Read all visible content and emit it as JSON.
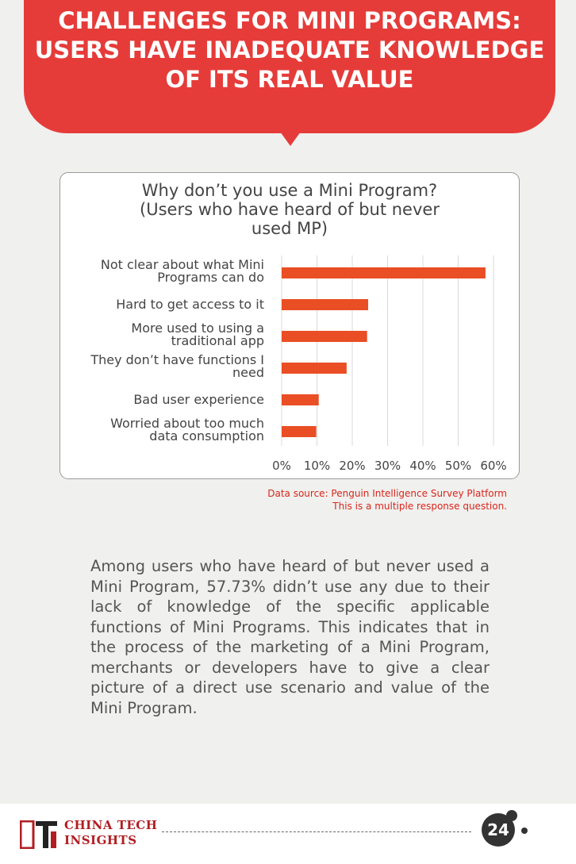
{
  "header": {
    "title": "CHALLENGES FOR MINI PROGRAMS: USERS HAVE INADEQUATE KNOWLEDGE OF ITS REAL VALUE",
    "color": "#e53c3a"
  },
  "chart_data": {
    "type": "bar",
    "orientation": "horizontal",
    "title_lines": [
      "Why don’t you use a Mini Program?",
      "(Users who have heard of but never",
      "used  MP)"
    ],
    "categories": [
      [
        "Not clear about what Mini",
        "Programs can do"
      ],
      [
        "Hard to get access to it"
      ],
      [
        "More used to using a",
        "traditional app"
      ],
      [
        "They don’t have functions I",
        "need"
      ],
      [
        "Bad user experience"
      ],
      [
        "Worried about too much",
        "data consumption"
      ]
    ],
    "values": [
      57.73,
      24.5,
      24.2,
      18.4,
      10.5,
      9.8
    ],
    "xlim": [
      0,
      60
    ],
    "xticks": [
      "0%",
      "10%",
      "20%",
      "30%",
      "40%",
      "50%",
      "60%"
    ],
    "bar_color": "#e94e24",
    "grid": true
  },
  "source": {
    "line1": "Data source: Penguin Intelligence Survey Platform",
    "line2": "This is a multiple response question."
  },
  "body": {
    "paragraph": "Among users who have heard of but never used a Mini Program, 57.73% didn’t use any due to their lack of knowledge of the specific applicable functions of Mini Programs. This indicates that in the process of the marketing of a Mini Program, merchants or developers have to give a clear picture of a direct use scenario and value of the Mini Program."
  },
  "footer": {
    "brand_line1": "CHINA TECH",
    "brand_line2": "INSIGHTS",
    "page_number": "24"
  }
}
